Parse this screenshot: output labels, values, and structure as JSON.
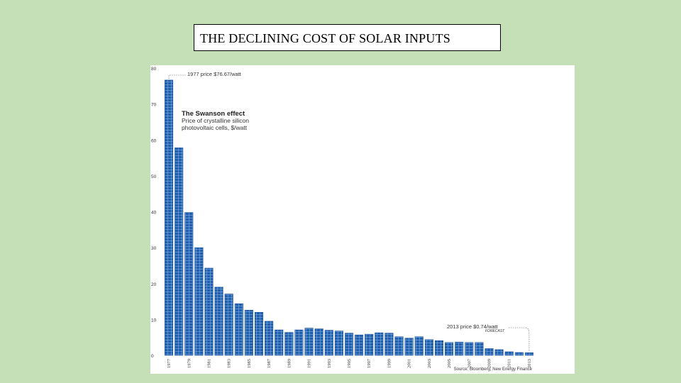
{
  "slide": {
    "title": "THE DECLINING COST OF SOLAR INPUTS"
  },
  "chart_data": {
    "type": "bar",
    "title": "The Swanson effect",
    "subtitle": "Price of crystalline silicon photovoltaic cells, $/watt",
    "ylim": [
      0,
      80
    ],
    "y_ticks": [
      0,
      10,
      20,
      30,
      40,
      50,
      60,
      70,
      80
    ],
    "categories": [
      "1977",
      "1978",
      "1979",
      "1980",
      "1981",
      "1982",
      "1983",
      "1984",
      "1985",
      "1986",
      "1987",
      "1988",
      "1989",
      "1990",
      "1991",
      "1992",
      "1993",
      "1994",
      "1995",
      "1996",
      "1997",
      "1998",
      "1999",
      "2000",
      "2001",
      "2002",
      "2003",
      "2004",
      "2005",
      "2006",
      "2007",
      "2008",
      "2009",
      "2010",
      "2011",
      "2012",
      "2013"
    ],
    "values": [
      76.67,
      57.8,
      39.8,
      30.0,
      24.3,
      19.0,
      17.1,
      14.4,
      12.6,
      12.0,
      9.5,
      7.1,
      6.4,
      7.1,
      7.6,
      7.4,
      7.0,
      6.8,
      6.2,
      5.7,
      5.9,
      6.3,
      6.2,
      5.2,
      4.8,
      5.2,
      4.4,
      4.1,
      3.6,
      3.7,
      3.6,
      3.6,
      1.9,
      1.6,
      1.0,
      0.8,
      0.74
    ],
    "x_tick_labels": [
      "1977",
      "1979",
      "1981",
      "1983",
      "1985",
      "1987",
      "1989",
      "1991",
      "1993",
      "1995",
      "1997",
      "1999",
      "2001",
      "2003",
      "2005",
      "2007",
      "2009",
      "2011",
      "2013"
    ],
    "bar_color": "#1f5fb0",
    "annotations": {
      "start": "1977 price $76.67/watt",
      "end": "2013 price $0.74/watt",
      "end_note": "FORECAST"
    },
    "source": "Source: Bloomberg, New Energy Finance"
  }
}
